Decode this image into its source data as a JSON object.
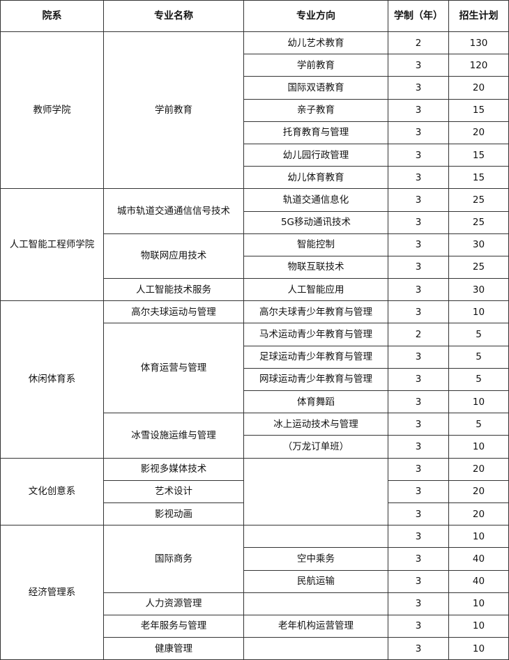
{
  "headers": [
    "院系",
    "专业名称",
    "专业方向",
    "学制（年）",
    "招生计划"
  ],
  "departments": [
    {
      "name": "教师学院",
      "majors": [
        {
          "name": "学前教育",
          "directions": [
            {
              "name": "幼儿艺术教育",
              "years": "2",
              "plan": "130"
            },
            {
              "name": "学前教育",
              "years": "3",
              "plan": "120"
            },
            {
              "name": "国际双语教育",
              "years": "3",
              "plan": "20"
            },
            {
              "name": "亲子教育",
              "years": "3",
              "plan": "15"
            },
            {
              "name": "托育教育与管理",
              "years": "3",
              "plan": "20"
            },
            {
              "name": "幼儿园行政管理",
              "years": "3",
              "plan": "15"
            },
            {
              "name": "幼儿体育教育",
              "years": "3",
              "plan": "15"
            }
          ]
        }
      ]
    },
    {
      "name": "人工智能工程师学院",
      "majors": [
        {
          "name": "城市轨道交通通信信号技术",
          "directions": [
            {
              "name": "轨道交通信息化",
              "years": "3",
              "plan": "25"
            },
            {
              "name": "5G移动通讯技术",
              "years": "3",
              "plan": "25"
            }
          ]
        },
        {
          "name": "物联网应用技术",
          "directions": [
            {
              "name": "智能控制",
              "years": "3",
              "plan": "30"
            },
            {
              "name": "物联互联技术",
              "years": "3",
              "plan": "25"
            }
          ]
        },
        {
          "name": "人工智能技术服务",
          "directions": [
            {
              "name": "人工智能应用",
              "years": "3",
              "plan": "30"
            }
          ]
        }
      ]
    },
    {
      "name": "休闲体育系",
      "majors": [
        {
          "name": "高尔夫球运动与管理",
          "directions": [
            {
              "name": "高尔夫球青少年教育与管理",
              "years": "3",
              "plan": "10"
            }
          ]
        },
        {
          "name": "体育运营与管理",
          "directions": [
            {
              "name": "马术运动青少年教育与管理",
              "years": "2",
              "plan": "5"
            },
            {
              "name": "足球运动青少年教育与管理",
              "years": "3",
              "plan": "5"
            },
            {
              "name": "网球运动青少年教育与管理",
              "years": "3",
              "plan": "5"
            },
            {
              "name": "体育舞蹈",
              "years": "3",
              "plan": "10"
            }
          ]
        },
        {
          "name": "冰雪设施运维与管理",
          "directions": [
            {
              "name": "冰上运动技术与管理",
              "years": "3",
              "plan": "5"
            },
            {
              "name": "（万龙订单班）",
              "years": "3",
              "plan": "10"
            }
          ]
        }
      ]
    },
    {
      "name": "文化创意系",
      "merged_direction": true,
      "majors": [
        {
          "name": "影视多媒体技术",
          "directions": [
            {
              "name": "",
              "years": "3",
              "plan": "20"
            }
          ]
        },
        {
          "name": "艺术设计",
          "directions": [
            {
              "name": "",
              "years": "3",
              "plan": "20"
            }
          ]
        },
        {
          "name": "影视动画",
          "directions": [
            {
              "name": "",
              "years": "3",
              "plan": "20"
            }
          ]
        }
      ]
    },
    {
      "name": "经济管理系",
      "majors": [
        {
          "name": "国际商务",
          "directions": [
            {
              "name": "",
              "years": "3",
              "plan": "10"
            },
            {
              "name": "空中乘务",
              "years": "3",
              "plan": "40"
            },
            {
              "name": "民航运输",
              "years": "3",
              "plan": "40"
            }
          ]
        },
        {
          "name": "人力资源管理",
          "directions": [
            {
              "name": "",
              "years": "3",
              "plan": "10"
            }
          ]
        },
        {
          "name": "老年服务与管理",
          "directions": [
            {
              "name": "老年机构运营管理",
              "years": "3",
              "plan": "10"
            }
          ]
        },
        {
          "name": "健康管理",
          "directions": [
            {
              "name": "",
              "years": "3",
              "plan": "10"
            }
          ]
        }
      ]
    }
  ]
}
